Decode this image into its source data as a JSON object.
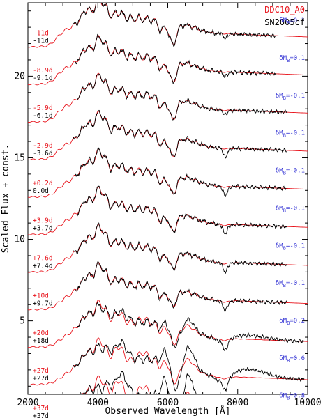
{
  "chart_data": {
    "type": "line",
    "xlabel": "Observed Wavelength  [Å]",
    "ylabel": "Scaled Flux + const.",
    "xlim": [
      2000,
      10000
    ],
    "ylim": [
      0.5,
      24.5
    ],
    "x_ticks": [
      2000,
      4000,
      6000,
      8000,
      10000
    ],
    "y_ticks": [
      5,
      10,
      15,
      20
    ],
    "legend": [
      {
        "label": "DDC10_A0",
        "color": "#e8141c"
      },
      {
        "label": "SN2005cf",
        "color": "#000000"
      }
    ],
    "legend_position": "top-right",
    "colors": {
      "model": "#e8141c",
      "observed": "#000000",
      "delta_label": "#3b3bd6"
    },
    "dm_prefix": "δM",
    "dm_subscript": "B",
    "spectra": [
      {
        "model_epoch": "-11d",
        "obs_epoch": "-11d",
        "delta_mb": "0.1",
        "offset": 21.8
      },
      {
        "model_epoch": "-8.9d",
        "obs_epoch": "-9.1d",
        "delta_mb": "0.1",
        "offset": 19.5
      },
      {
        "model_epoch": "-5.9d",
        "obs_epoch": "-6.1d",
        "delta_mb": "-0.1",
        "offset": 17.2
      },
      {
        "model_epoch": "-2.9d",
        "obs_epoch": "-3.6d",
        "delta_mb": "-0.1",
        "offset": 14.9
      },
      {
        "model_epoch": "+0.2d",
        "obs_epoch": "0.0d",
        "delta_mb": "-0.1",
        "offset": 12.6
      },
      {
        "model_epoch": "+3.9d",
        "obs_epoch": "+3.7d",
        "delta_mb": "-0.1",
        "offset": 10.3
      },
      {
        "model_epoch": "+7.6d",
        "obs_epoch": "+7.4d",
        "delta_mb": "-0.1",
        "offset": 8.0
      },
      {
        "model_epoch": "+10d",
        "obs_epoch": "+9.7d",
        "delta_mb": "-0.1",
        "offset": 5.7
      },
      {
        "model_epoch": "+20d",
        "obs_epoch": "+18d",
        "delta_mb": "0.2",
        "offset": 3.4
      },
      {
        "model_epoch": "+27d",
        "obs_epoch": "+27d",
        "delta_mb": "0.6",
        "offset": 1.1
      },
      {
        "model_epoch": "+37d",
        "obs_epoch": "+37d",
        "delta_mb": "0.8",
        "offset": -1.2
      }
    ]
  }
}
